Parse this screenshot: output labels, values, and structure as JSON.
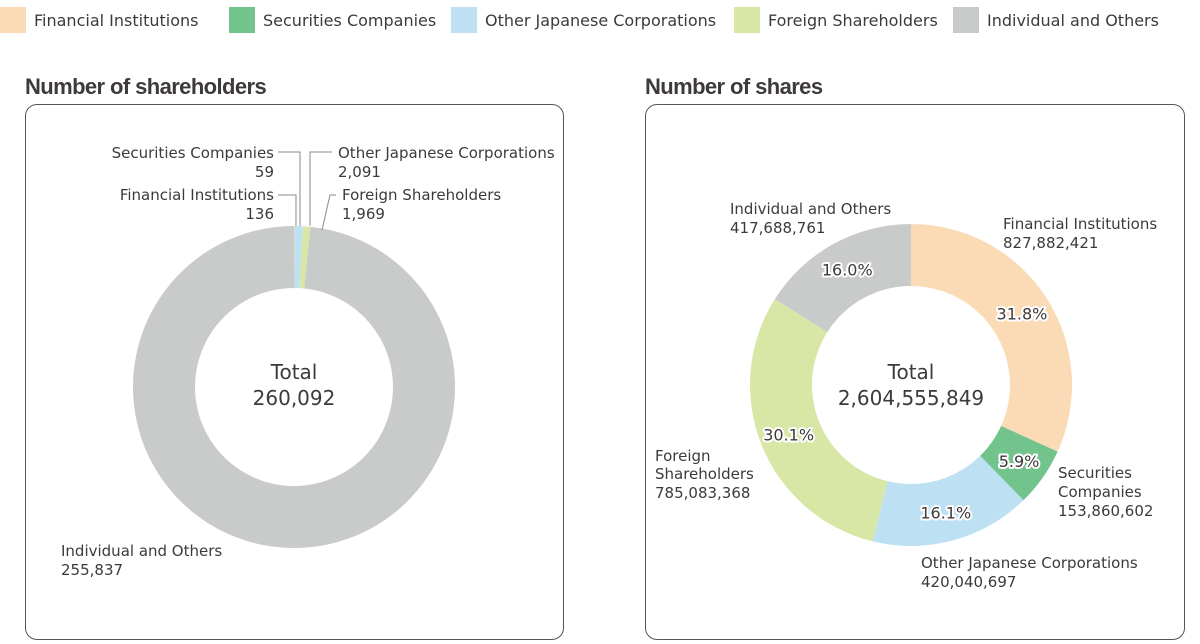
{
  "legend": [
    {
      "label": "Financial Institutions",
      "color": "#fbdab6"
    },
    {
      "label": "Securities Companies",
      "color": "#73c38d"
    },
    {
      "label": "Other Japanese Corporations",
      "color": "#bde0f3"
    },
    {
      "label": "Foreign Shareholders",
      "color": "#d8e6a6"
    },
    {
      "label": "Individual and Others",
      "color": "#c9caca"
    }
  ],
  "chart_data": [
    {
      "type": "pie",
      "variant": "donut",
      "title": "Number of shareholders",
      "center_label": "Total",
      "center_value": "260,092",
      "categories": [
        "Financial Institutions",
        "Securities Companies",
        "Other Japanese Corporations",
        "Foreign Shareholders",
        "Individual and Others"
      ],
      "values": [
        136,
        59,
        2091,
        1969,
        255837
      ],
      "value_labels": [
        "136",
        "59",
        "2,091",
        "1,969",
        "255,837"
      ],
      "colors": [
        "#fbdab6",
        "#73c38d",
        "#bde0f3",
        "#d8e6a6",
        "#c9caca"
      ],
      "callout_labels": [
        {
          "name": "Financial Institutions",
          "value": "136"
        },
        {
          "name": "Securities Companies",
          "value": "59"
        },
        {
          "name": "Other Japanese Corporations",
          "value": "2,091"
        },
        {
          "name": "Foreign Shareholders",
          "value": "1,969"
        },
        {
          "name": "Individual and Others",
          "value": "255,837"
        }
      ]
    },
    {
      "type": "pie",
      "variant": "donut",
      "title": "Number of shares",
      "center_label": "Total",
      "center_value": "2,604,555,849",
      "categories": [
        "Financial Institutions",
        "Securities Companies",
        "Other Japanese Corporations",
        "Foreign Shareholders",
        "Individual and Others"
      ],
      "values": [
        827882421,
        153860602,
        420040697,
        785083368,
        417688761
      ],
      "value_labels": [
        "827,882,421",
        "153,860,602",
        "420,040,697",
        "785,083,368",
        "417,688,761"
      ],
      "percent_labels": [
        "31.8%",
        "5.9%",
        "16.1%",
        "30.1%",
        "16.0%"
      ],
      "colors": [
        "#fbdab6",
        "#73c38d",
        "#bde0f3",
        "#d8e6a6",
        "#c9caca"
      ],
      "callout_labels": [
        {
          "name": "Financial Institutions",
          "value": "827,882,421"
        },
        {
          "name_lines": [
            "Securities",
            "Companies"
          ],
          "value": "153,860,602"
        },
        {
          "name": "Other Japanese Corporations",
          "value": "420,040,697"
        },
        {
          "name_lines": [
            "Foreign",
            "Shareholders"
          ],
          "value": "785,083,368"
        },
        {
          "name": "Individual and Others",
          "value": "417,688,761"
        }
      ]
    }
  ]
}
